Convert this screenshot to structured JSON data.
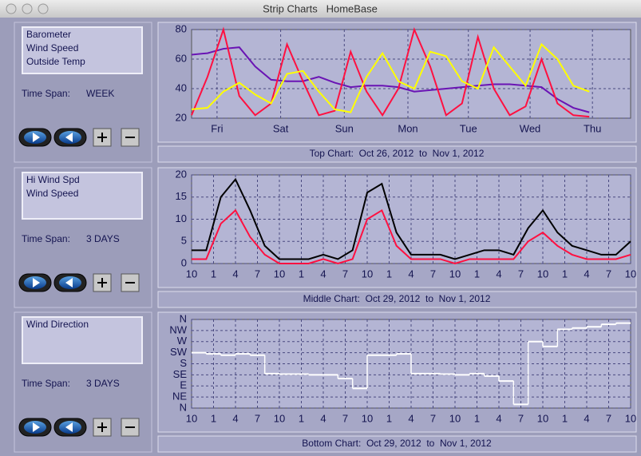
{
  "window": {
    "title": "Strip Charts   HomeBase"
  },
  "panels": [
    {
      "time_span_label": "Time Span:",
      "time_span": "WEEK",
      "caption": "Top Chart:  Oct 26, 2012  to  Nov 1, 2012",
      "chart": {
        "type": "line",
        "x": [
          0,
          0.25,
          0.5,
          0.75,
          1,
          1.25,
          1.5,
          1.75,
          2,
          2.25,
          2.5,
          2.75,
          3,
          3.25,
          3.5,
          3.75,
          4,
          4.25,
          4.5,
          4.75,
          5,
          5.25,
          5.5,
          5.75,
          6,
          6.25
        ],
        "xlim": [
          0,
          6.9
        ],
        "xticks": [
          {
            "value": 0.4,
            "label": "Fri"
          },
          {
            "value": 1.4,
            "label": "Sat"
          },
          {
            "value": 2.4,
            "label": "Sun"
          },
          {
            "value": 3.4,
            "label": "Mon"
          },
          {
            "value": 4.35,
            "label": "Tue"
          },
          {
            "value": 5.32,
            "label": "Wed"
          },
          {
            "value": 6.3,
            "label": "Thu"
          }
        ],
        "ylim": [
          20,
          80
        ],
        "yticks": [
          20,
          40,
          60,
          80
        ],
        "grid": true,
        "series": [
          {
            "name": "Barometer",
            "color": "#6a14b4",
            "values": [
              63,
              64,
              67,
              68,
              55,
              46,
              45,
              45,
              48,
              44,
              41,
              42,
              42,
              41,
              38,
              39,
              40,
              41,
              42,
              43,
              43,
              42,
              41,
              33,
              27,
              24
            ]
          },
          {
            "name": "Wind Speed",
            "color": "#ff1040",
            "values": [
              22,
              48,
              80,
              35,
              22,
              30,
              70,
              45,
              22,
              25,
              65,
              38,
              22,
              40,
              80,
              55,
              22,
              30,
              75,
              40,
              22,
              28,
              60,
              30,
              22,
              21
            ]
          },
          {
            "name": "Outside Temp",
            "color": "#ffff00",
            "values": [
              26,
              27,
              38,
              44,
              36,
              30,
              50,
              52,
              38,
              26,
              24,
              48,
              64,
              45,
              40,
              65,
              62,
              45,
              40,
              68,
              55,
              42,
              70,
              60,
              42,
              38
            ]
          }
        ]
      }
    },
    {
      "time_span_label": "Time Span:",
      "time_span": "3 DAYS",
      "caption": "Middle Chart:  Oct 29, 2012  to  Nov 1, 2012",
      "chart": {
        "type": "line",
        "x": [
          0,
          2,
          4,
          6,
          8,
          10,
          12,
          14,
          16,
          18,
          20,
          22,
          24,
          26,
          28,
          30,
          32,
          34,
          36,
          38,
          40,
          42,
          44,
          46,
          48,
          50,
          52,
          54,
          56,
          58,
          60
        ],
        "xlim": [
          0,
          60
        ],
        "xticks": [
          {
            "value": 0,
            "label": "10"
          },
          {
            "value": 3,
            "label": "1"
          },
          {
            "value": 6,
            "label": "4"
          },
          {
            "value": 9,
            "label": "7"
          },
          {
            "value": 12,
            "label": "10"
          },
          {
            "value": 15,
            "label": "1"
          },
          {
            "value": 18,
            "label": "4"
          },
          {
            "value": 21,
            "label": "7"
          },
          {
            "value": 24,
            "label": "10"
          },
          {
            "value": 27,
            "label": "1"
          },
          {
            "value": 30,
            "label": "4"
          },
          {
            "value": 33,
            "label": "7"
          },
          {
            "value": 36,
            "label": "10"
          },
          {
            "value": 39,
            "label": "1"
          },
          {
            "value": 42,
            "label": "4"
          },
          {
            "value": 45,
            "label": "7"
          },
          {
            "value": 48,
            "label": "10"
          },
          {
            "value": 51,
            "label": "1"
          },
          {
            "value": 54,
            "label": "4"
          },
          {
            "value": 57,
            "label": "7"
          },
          {
            "value": 60,
            "label": "10"
          }
        ],
        "ylim": [
          0,
          20
        ],
        "yticks": [
          0,
          5,
          10,
          15,
          20
        ],
        "grid": true,
        "series": [
          {
            "name": "Hi Wind Spd",
            "color": "#000000",
            "values": [
              3,
              3,
              15,
              19,
              12,
              4,
              1,
              1,
              1,
              2,
              1,
              3,
              16,
              18,
              7,
              2,
              2,
              2,
              1,
              2,
              3,
              3,
              2,
              8,
              12,
              7,
              4,
              3,
              2,
              2,
              5
            ]
          },
          {
            "name": "Wind Speed",
            "color": "#ff1040",
            "values": [
              1,
              1,
              9,
              12,
              6,
              2,
              0,
              0,
              0,
              1,
              0,
              1,
              10,
              12,
              4,
              1,
              1,
              1,
              0,
              1,
              1,
              1,
              1,
              5,
              7,
              4,
              2,
              1,
              1,
              1,
              2
            ]
          }
        ]
      }
    },
    {
      "time_span_label": "Time Span:",
      "time_span": "3 DAYS",
      "caption": "Bottom Chart:  Oct 29, 2012  to  Nov 1, 2012",
      "chart": {
        "type": "step",
        "x": [
          0,
          2,
          4,
          6,
          8,
          10,
          12,
          14,
          16,
          18,
          20,
          22,
          24,
          26,
          28,
          30,
          32,
          34,
          36,
          38,
          40,
          42,
          44,
          46,
          48,
          50,
          52,
          54,
          56,
          58,
          60
        ],
        "xlim": [
          0,
          60
        ],
        "xticks": [
          {
            "value": 0,
            "label": "10"
          },
          {
            "value": 3,
            "label": "1"
          },
          {
            "value": 6,
            "label": "4"
          },
          {
            "value": 9,
            "label": "7"
          },
          {
            "value": 12,
            "label": "10"
          },
          {
            "value": 15,
            "label": "1"
          },
          {
            "value": 18,
            "label": "4"
          },
          {
            "value": 21,
            "label": "7"
          },
          {
            "value": 24,
            "label": "10"
          },
          {
            "value": 27,
            "label": "1"
          },
          {
            "value": 30,
            "label": "4"
          },
          {
            "value": 33,
            "label": "7"
          },
          {
            "value": 36,
            "label": "10"
          },
          {
            "value": 39,
            "label": "1"
          },
          {
            "value": 42,
            "label": "4"
          },
          {
            "value": 45,
            "label": "7"
          },
          {
            "value": 48,
            "label": "10"
          },
          {
            "value": 51,
            "label": "1"
          },
          {
            "value": 54,
            "label": "4"
          },
          {
            "value": 57,
            "label": "7"
          },
          {
            "value": 60,
            "label": "10"
          }
        ],
        "ylim": [
          0,
          360
        ],
        "yticks": [
          {
            "value": 0,
            "label": "N"
          },
          {
            "value": 45,
            "label": "NE"
          },
          {
            "value": 90,
            "label": "E"
          },
          {
            "value": 135,
            "label": "SE"
          },
          {
            "value": 180,
            "label": "S"
          },
          {
            "value": 225,
            "label": "SW"
          },
          {
            "value": 270,
            "label": "W"
          },
          {
            "value": 315,
            "label": "NW"
          },
          {
            "value": 360,
            "label": "N"
          }
        ],
        "grid": true,
        "series": [
          {
            "name": "Wind Direction",
            "color": "#ffffff",
            "values": [
              225,
              220,
              215,
              220,
              215,
              140,
              138,
              138,
              135,
              135,
              120,
              80,
              215,
              215,
              220,
              140,
              140,
              138,
              135,
              140,
              130,
              110,
              15,
              270,
              250,
              320,
              325,
              330,
              340,
              345,
              345
            ]
          }
        ]
      }
    }
  ]
}
